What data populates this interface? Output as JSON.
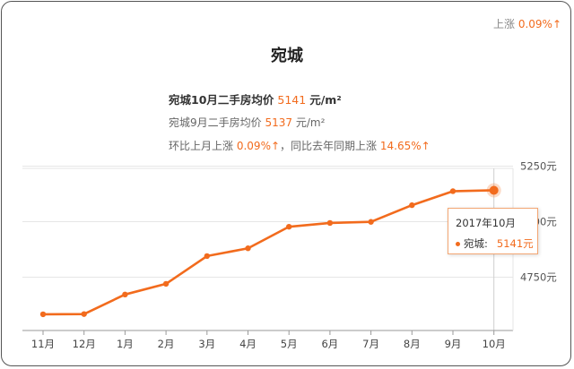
{
  "header": {
    "change_label": "上涨",
    "change_value": "0.09%",
    "change_arrow": "↑"
  },
  "title": "宛城",
  "summary": {
    "current_label": "宛城10月二手房均价",
    "current_value": "5141",
    "current_unit": "元/m²",
    "prev_label": "宛城9月二手房均价",
    "prev_value": "5137",
    "prev_unit": "元/m²",
    "mom_label": "环比上月上涨",
    "mom_value": "0.09%↑",
    "yoy_label": "，同比去年同期上涨",
    "yoy_value": "14.65%↑"
  },
  "tooltip": {
    "date": "2017年10月",
    "series_label": "宛城:",
    "value": "5141元"
  },
  "colors": {
    "accent": "#f26b1d",
    "grid": "#e6e6e6",
    "axis": "#999999"
  },
  "chart_data": {
    "type": "line",
    "categories": [
      "11月",
      "12月",
      "1月",
      "2月",
      "3月",
      "4月",
      "5月",
      "6月",
      "7月",
      "8月",
      "9月",
      "10月"
    ],
    "series": [
      {
        "values": [
          4583,
          4584,
          4672,
          4720,
          4845,
          4880,
          4977,
          4994,
          4999,
          5074,
          5137,
          5141
        ]
      }
    ],
    "ylim": [
      4510,
      5280
    ],
    "yticks": [
      {
        "value": 5250,
        "label": "5250元"
      },
      {
        "value": 5000,
        "label": "5000元"
      },
      {
        "value": 4750,
        "label": "4750元"
      }
    ],
    "highlight_index": 11,
    "grid": true
  }
}
